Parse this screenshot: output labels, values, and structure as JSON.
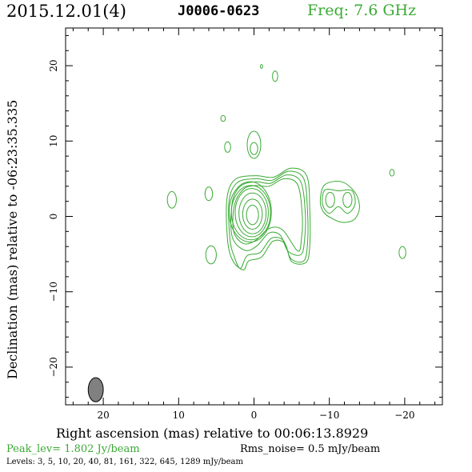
{
  "header": {
    "date": "2015.12.01(4)",
    "source": "J0006-0623",
    "freq": "Freq: 7.6 GHz"
  },
  "colors": {
    "contour": "#3aaa35",
    "beam_fill": "#808080",
    "axes": "#000000"
  },
  "chart_data": {
    "type": "contour",
    "xlabel": "Right ascension (mas) relative to 00:06:13.8929",
    "ylabel": "Declination (mas) relative to -06:23:35.335",
    "xlim": [
      25,
      -25
    ],
    "ylim": [
      -25,
      25
    ],
    "x_ticks": [
      20,
      10,
      0,
      -10,
      -20
    ],
    "x_tick_labels": [
      "20",
      "10",
      "0",
      "−10",
      "−20"
    ],
    "y_ticks": [
      20,
      10,
      0,
      -10,
      -20
    ],
    "y_tick_labels": [
      "20",
      "10",
      "0",
      "−10",
      "−20"
    ],
    "peak": "Peak_lev=  1.802 Jy/beam",
    "rms": "Rms_noise=  0.5 mJy/beam",
    "levels_text": "Levels:   3,   5,  10,  20,  40,  81, 161, 322, 645, 1289 mJy/beam",
    "contour_levels_mJy": [
      3,
      5,
      10,
      20,
      40,
      81,
      161,
      322,
      645,
      1289
    ],
    "beam": {
      "x": 21.0,
      "y": -23.0,
      "major": 3.2,
      "minor": 2.0,
      "pa_deg": 0
    },
    "core": {
      "x": 0,
      "y": 0
    },
    "core_contours": [
      {
        "x": 0.2,
        "y": 0.2,
        "rx": 0.8,
        "ry": 1.3
      },
      {
        "x": 0.2,
        "y": 0.3,
        "rx": 1.3,
        "ry": 2.0
      },
      {
        "x": 0.2,
        "y": 0.4,
        "rx": 1.8,
        "ry": 2.7
      },
      {
        "x": 0.3,
        "y": 0.5,
        "rx": 2.2,
        "ry": 3.2
      },
      {
        "x": 0.4,
        "y": 0.5,
        "rx": 2.6,
        "ry": 3.6
      },
      {
        "x": 0.5,
        "y": 0.6,
        "rx": 2.8,
        "ry": 4.0
      }
    ],
    "jet_contours": [
      [
        [
          -0.2,
          4.1
        ],
        [
          -2.0,
          4.0
        ],
        [
          -4.0,
          5.0
        ],
        [
          -5.8,
          4.2
        ],
        [
          -6.4,
          0.2
        ],
        [
          -6.3,
          -3.0
        ],
        [
          -5.8,
          -4.6
        ],
        [
          -3.8,
          -1.8
        ],
        [
          -2.0,
          -1.6
        ],
        [
          -0.2,
          -3.2
        ],
        [
          1.4,
          -3.6
        ],
        [
          2.7,
          -2.0
        ],
        [
          2.6,
          1.5
        ],
        [
          1.4,
          3.6
        ]
      ],
      [
        [
          -0.2,
          4.6
        ],
        [
          -2.2,
          4.4
        ],
        [
          -4.3,
          5.5
        ],
        [
          -6.2,
          4.6
        ],
        [
          -6.8,
          0.5
        ],
        [
          -6.7,
          -3.2
        ],
        [
          -6.2,
          -5.1
        ],
        [
          -4.5,
          -4.6
        ],
        [
          -3.5,
          -2.5
        ],
        [
          -2.0,
          -2.2
        ],
        [
          -0.4,
          -3.9
        ],
        [
          1.2,
          -4.5
        ],
        [
          2.9,
          -2.7
        ],
        [
          2.9,
          1.8
        ],
        [
          1.8,
          4.0
        ]
      ],
      [
        [
          -0.2,
          5.0
        ],
        [
          -2.4,
          4.8
        ],
        [
          -4.6,
          6.0
        ],
        [
          -6.6,
          5.0
        ],
        [
          -7.1,
          0.7
        ],
        [
          -7.1,
          -3.6
        ],
        [
          -6.6,
          -5.9
        ],
        [
          -4.9,
          -5.6
        ],
        [
          -3.9,
          -3.2
        ],
        [
          -2.3,
          -2.9
        ],
        [
          -0.8,
          -4.8
        ],
        [
          0.9,
          -5.2
        ],
        [
          1.8,
          -6.9
        ],
        [
          2.6,
          -5.4
        ],
        [
          3.2,
          -3.0
        ],
        [
          3.3,
          2.1
        ],
        [
          2.2,
          4.5
        ]
      ],
      [
        [
          -0.2,
          5.4
        ],
        [
          -2.6,
          5.2
        ],
        [
          -4.9,
          6.4
        ],
        [
          -7.0,
          5.4
        ],
        [
          -7.4,
          0.9
        ],
        [
          -7.4,
          -3.9
        ],
        [
          -6.9,
          -6.1
        ],
        [
          -5.0,
          -6.0
        ],
        [
          -4.1,
          -3.6
        ],
        [
          -2.5,
          -3.3
        ],
        [
          -1.0,
          -5.4
        ],
        [
          0.7,
          -5.9
        ],
        [
          1.4,
          -7.1
        ],
        [
          2.8,
          -5.9
        ],
        [
          3.5,
          -3.2
        ],
        [
          3.6,
          2.3
        ],
        [
          2.5,
          4.9
        ]
      ]
    ],
    "islands": [
      {
        "x": 10.9,
        "y": 2.2,
        "rx": 0.6,
        "ry": 1.1
      },
      {
        "x": 6.0,
        "y": 3.0,
        "rx": 0.5,
        "ry": 0.9
      },
      {
        "x": 5.7,
        "y": -5.1,
        "rx": 0.7,
        "ry": 1.2
      },
      {
        "x": 4.1,
        "y": 13.0,
        "rx": 0.3,
        "ry": 0.4
      },
      {
        "x": 3.5,
        "y": 9.2,
        "rx": 0.4,
        "ry": 0.7
      },
      {
        "x": 0.0,
        "y": 9.5,
        "rx": 0.9,
        "ry": 1.8
      },
      {
        "x": 0.0,
        "y": 9.0,
        "rx": 0.5,
        "ry": 0.8
      },
      {
        "x": -1.0,
        "y": 19.9,
        "rx": 0.15,
        "ry": 0.25
      },
      {
        "x": -2.8,
        "y": 18.6,
        "rx": 0.35,
        "ry": 0.7
      },
      {
        "x": -18.3,
        "y": 5.8,
        "rx": 0.3,
        "ry": 0.45
      },
      {
        "x": -19.7,
        "y": -4.8,
        "rx": 0.45,
        "ry": 0.8
      }
    ],
    "double_source": {
      "outer": [
        [
          -9.4,
          4.2
        ],
        [
          -11.6,
          4.6
        ],
        [
          -13.4,
          3.2
        ],
        [
          -14.0,
          1.2
        ],
        [
          -13.3,
          -0.4
        ],
        [
          -11.8,
          -0.8
        ],
        [
          -10.4,
          -0.3
        ],
        [
          -9.2,
          0.6
        ],
        [
          -8.8,
          2.2
        ]
      ],
      "inner_left": {
        "x": -10.1,
        "y": 2.2,
        "rx": 0.6,
        "ry": 1.0
      },
      "inner_right": {
        "x": -12.4,
        "y": 2.2,
        "rx": 0.6,
        "ry": 1.0
      },
      "middle": [
        [
          -9.4,
          3.5
        ],
        [
          -11.2,
          3.4
        ],
        [
          -13.0,
          3.4
        ],
        [
          -13.4,
          1.6
        ],
        [
          -12.4,
          0.4
        ],
        [
          -11.2,
          1.3
        ],
        [
          -10.0,
          0.4
        ],
        [
          -9.1,
          1.6
        ]
      ]
    }
  }
}
